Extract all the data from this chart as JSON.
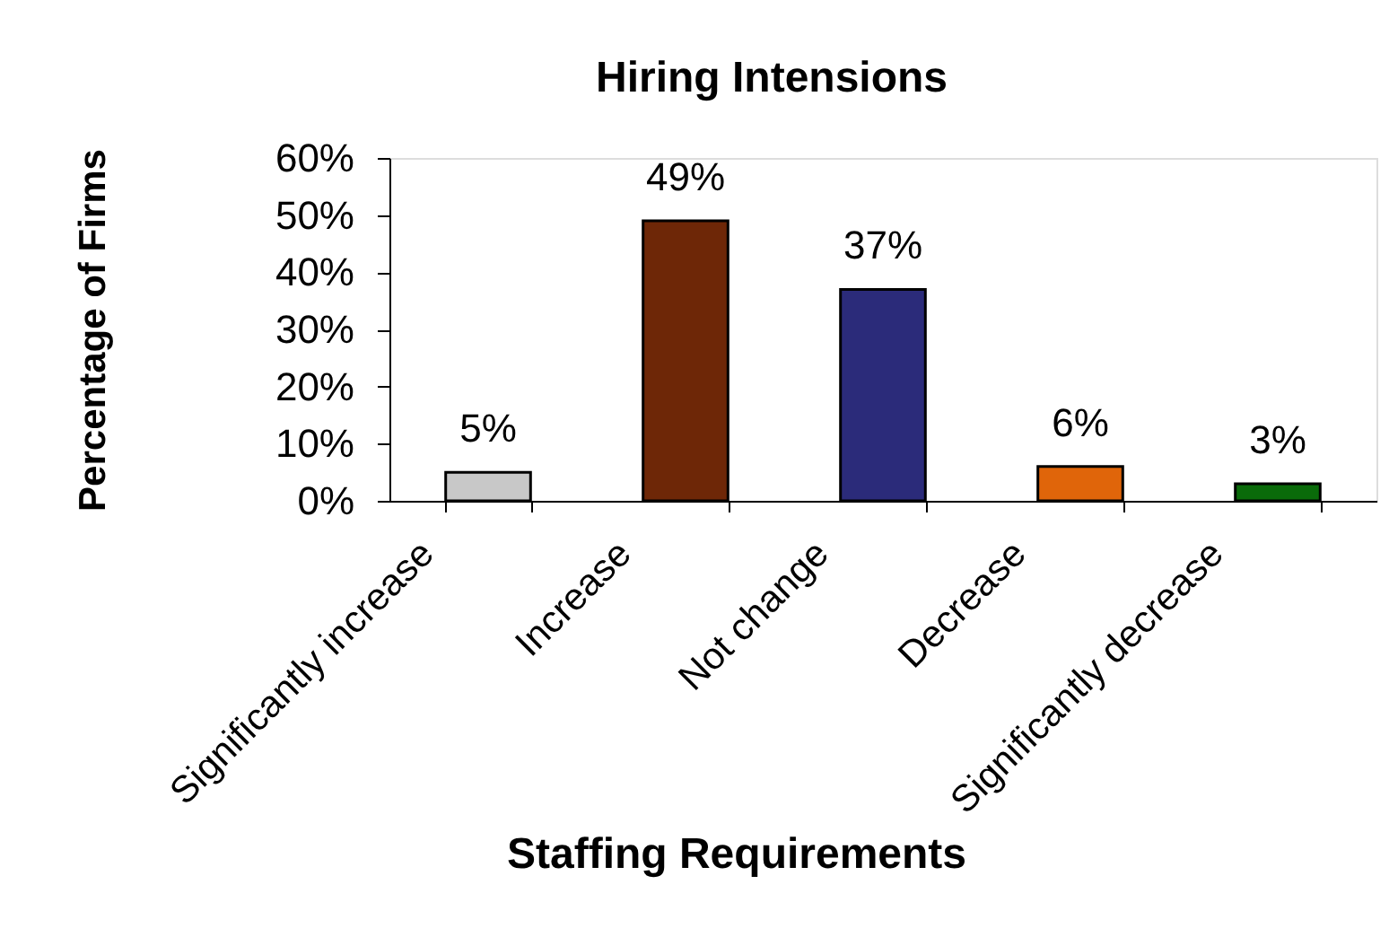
{
  "chart_data": {
    "type": "bar",
    "title": "Hiring Intensions",
    "xlabel": "Staffing Requirements",
    "ylabel": "Percentage of Firms",
    "categories": [
      "Significantly increase",
      "Increase",
      "Not change",
      "Decrease",
      "Significantly decrease"
    ],
    "values": [
      5,
      49,
      37,
      6,
      3
    ],
    "colors": [
      "#c8c8c8",
      "#6e2707",
      "#2b2b7a",
      "#e0650a",
      "#0a6b0a"
    ],
    "value_labels": [
      "5%",
      "49%",
      "37%",
      "6%",
      "3%"
    ],
    "ylim": [
      0,
      60
    ],
    "yticks": [
      {
        "value": 0,
        "label": "0%"
      },
      {
        "value": 10,
        "label": "10%"
      },
      {
        "value": 20,
        "label": "20%"
      },
      {
        "value": 30,
        "label": "30%"
      },
      {
        "value": 40,
        "label": "40%"
      },
      {
        "value": 50,
        "label": "50%"
      },
      {
        "value": 60,
        "label": "60%"
      }
    ]
  }
}
